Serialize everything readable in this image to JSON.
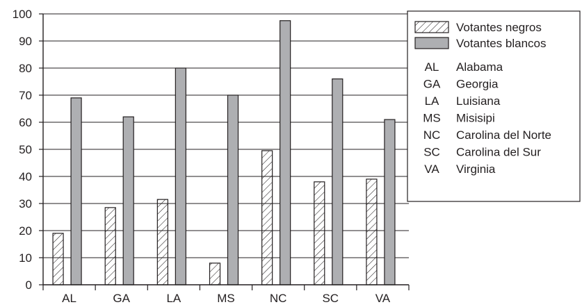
{
  "colors": {
    "axis": "#231f20",
    "grid": "#231f20",
    "white_bar_fill": "#aeafb2",
    "black_bar_fill": "#ffffff",
    "hatch": "#231f20"
  },
  "chart_data": {
    "type": "bar",
    "title": "",
    "xlabel": "",
    "ylabel": "",
    "ylim": [
      0,
      100
    ],
    "yticks": [
      0,
      10,
      20,
      30,
      40,
      50,
      60,
      70,
      80,
      90,
      100
    ],
    "grid": true,
    "legend_position": "top-right",
    "categories": [
      "AL",
      "GA",
      "LA",
      "MS",
      "NC",
      "SC",
      "VA"
    ],
    "series": [
      {
        "name": "Votantes negros",
        "pattern": "hatched",
        "values": [
          19,
          28.5,
          31.5,
          8,
          49.5,
          38,
          39
        ]
      },
      {
        "name": "Votantes blancos",
        "pattern": "solid-gray",
        "values": [
          69,
          62,
          80,
          70,
          97.5,
          76,
          61
        ]
      }
    ],
    "legend_abbreviations": [
      {
        "code": "AL",
        "name": "Alabama"
      },
      {
        "code": "GA",
        "name": "Georgia"
      },
      {
        "code": "LA",
        "name": "Luisiana"
      },
      {
        "code": "MS",
        "name": "Misisipi"
      },
      {
        "code": "NC",
        "name": "Carolina del Norte"
      },
      {
        "code": "SC",
        "name": "Carolina del Sur"
      },
      {
        "code": "VA",
        "name": "Virginia"
      }
    ]
  }
}
